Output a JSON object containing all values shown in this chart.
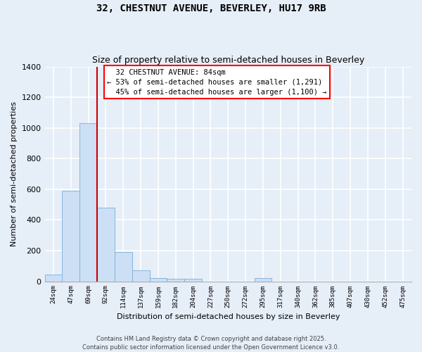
{
  "title1": "32, CHESTNUT AVENUE, BEVERLEY, HU17 9RB",
  "title2": "Size of property relative to semi-detached houses in Beverley",
  "xlabel": "Distribution of semi-detached houses by size in Beverley",
  "ylabel": "Number of semi-detached properties",
  "bar_labels": [
    "24sqm",
    "47sqm",
    "69sqm",
    "92sqm",
    "114sqm",
    "137sqm",
    "159sqm",
    "182sqm",
    "204sqm",
    "227sqm",
    "250sqm",
    "272sqm",
    "295sqm",
    "317sqm",
    "340sqm",
    "362sqm",
    "385sqm",
    "407sqm",
    "430sqm",
    "452sqm",
    "475sqm"
  ],
  "bar_values": [
    45,
    590,
    1030,
    480,
    190,
    70,
    20,
    15,
    15,
    0,
    0,
    0,
    20,
    0,
    0,
    0,
    0,
    0,
    0,
    0,
    0
  ],
  "bar_color": "#ccdff5",
  "bar_edge_color": "#7ab0d8",
  "background_color": "#e6eef8",
  "grid_color": "#ffffff",
  "red_line_x": 2.5,
  "annotation_line1": "  32 CHESTNUT AVENUE: 84sqm",
  "annotation_line2": "← 53% of semi-detached houses are smaller (1,291)",
  "annotation_line3": "  45% of semi-detached houses are larger (1,100) →",
  "red_line_color": "#cc0000",
  "ylim": [
    0,
    1400
  ],
  "yticks": [
    0,
    200,
    400,
    600,
    800,
    1000,
    1200,
    1400
  ],
  "footer1": "Contains HM Land Registry data © Crown copyright and database right 2025.",
  "footer2": "Contains public sector information licensed under the Open Government Licence v3.0."
}
